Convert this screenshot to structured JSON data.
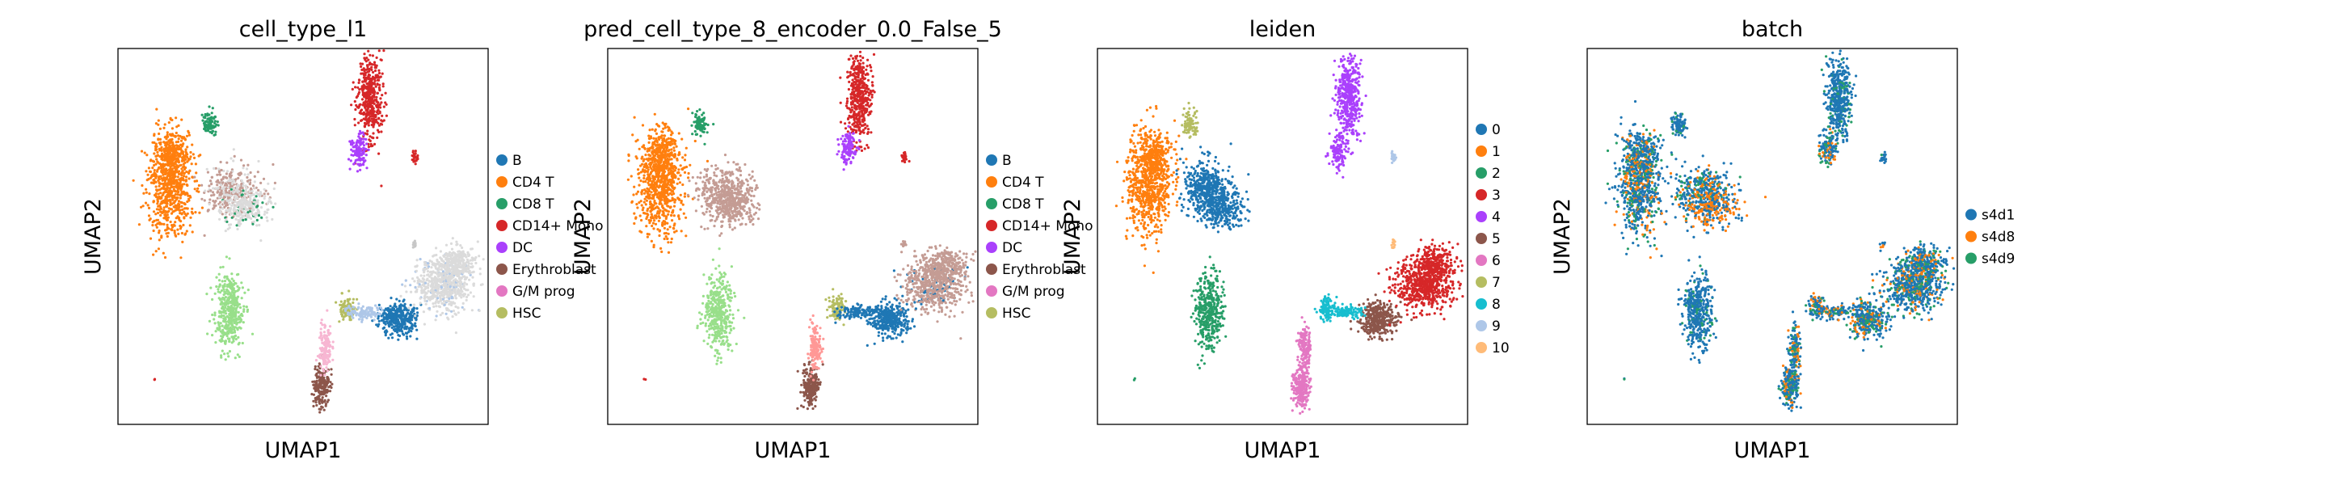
{
  "figure": {
    "xlabel": "UMAP1",
    "ylabel": "UMAP2"
  },
  "colors": {
    "c0": "#1f77b4",
    "c1": "#ff7f0e",
    "c2": "#279e68",
    "c3": "#d62728",
    "c4": "#aa40fc",
    "c5": "#8c564b",
    "c6": "#e377c2",
    "c7": "#b5bd61",
    "c8": "#17becf",
    "c9": "#aec7e8",
    "c10": "#ffbb78",
    "lightgreen": "#98df8a",
    "salmon": "#ff9896",
    "tan": "#c49c94",
    "pink": "#f7b6d2",
    "grey": "#c7c7c7",
    "midgrey": "#dbdbdb"
  },
  "chart_data": [
    {
      "type": "scatter",
      "title": "cell_type_l1",
      "xlabel": "UMAP1",
      "ylabel": "UMAP2",
      "legend_position": "right",
      "legend": [
        {
          "label": "B",
          "color": "#1f77b4"
        },
        {
          "label": "CD4 T",
          "color": "#ff7f0e"
        },
        {
          "label": "CD8 T",
          "color": "#279e68"
        },
        {
          "label": "CD14+ Mono",
          "color": "#d62728"
        },
        {
          "label": "DC",
          "color": "#aa40fc"
        },
        {
          "label": "Erythroblast",
          "color": "#8c564b"
        },
        {
          "label": "G/M prog",
          "color": "#e377c2"
        },
        {
          "label": "HSC",
          "color": "#b5bd61"
        }
      ]
    },
    {
      "type": "scatter",
      "title": "pred_cell_type_8_encoder_0.0_False_5",
      "xlabel": "UMAP1",
      "ylabel": "UMAP2",
      "legend_position": "right",
      "legend": [
        {
          "label": "B",
          "color": "#1f77b4"
        },
        {
          "label": "CD4 T",
          "color": "#ff7f0e"
        },
        {
          "label": "CD8 T",
          "color": "#279e68"
        },
        {
          "label": "CD14+ Mono",
          "color": "#d62728"
        },
        {
          "label": "DC",
          "color": "#aa40fc"
        },
        {
          "label": "Erythroblast",
          "color": "#8c564b"
        },
        {
          "label": "G/M prog",
          "color": "#e377c2"
        },
        {
          "label": "HSC",
          "color": "#b5bd61"
        }
      ]
    },
    {
      "type": "scatter",
      "title": "leiden",
      "xlabel": "UMAP1",
      "ylabel": "UMAP2",
      "legend_position": "right",
      "legend": [
        {
          "label": "0",
          "color": "#1f77b4"
        },
        {
          "label": "1",
          "color": "#ff7f0e"
        },
        {
          "label": "2",
          "color": "#279e68"
        },
        {
          "label": "3",
          "color": "#d62728"
        },
        {
          "label": "4",
          "color": "#aa40fc"
        },
        {
          "label": "5",
          "color": "#8c564b"
        },
        {
          "label": "6",
          "color": "#e377c2"
        },
        {
          "label": "7",
          "color": "#b5bd61"
        },
        {
          "label": "8",
          "color": "#17becf"
        },
        {
          "label": "9",
          "color": "#aec7e8"
        },
        {
          "label": "10",
          "color": "#ffbb78"
        }
      ]
    },
    {
      "type": "scatter",
      "title": "batch",
      "xlabel": "UMAP1",
      "ylabel": "UMAP2",
      "legend_position": "right",
      "legend": [
        {
          "label": "s4d1",
          "color": "#1f77b4"
        },
        {
          "label": "s4d8",
          "color": "#ff7f0e"
        },
        {
          "label": "s4d9",
          "color": "#279e68"
        }
      ]
    }
  ]
}
